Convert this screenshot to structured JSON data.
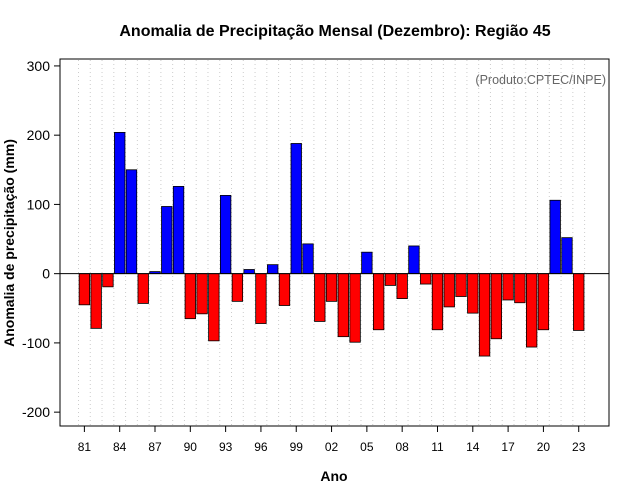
{
  "chart_data": {
    "type": "bar",
    "title": "Anomalia de Precipitação Mensal (Dezembro): Região 45",
    "xlabel": "Ano",
    "ylabel": "Anomalia de precipitação (mm)",
    "credit": "(Produto:CPTEC/INPE)",
    "ylim": [
      -220,
      310
    ],
    "yticks": [
      -200,
      -100,
      0,
      100,
      200,
      300
    ],
    "grid": "vertical dotted",
    "colors": {
      "positive": "#0000ff",
      "negative": "#ff0000",
      "grid": "#cccccc",
      "axis": "#000000",
      "credit": "#666666"
    },
    "categories": [
      "81",
      "82",
      "83",
      "84",
      "85",
      "86",
      "87",
      "88",
      "89",
      "90",
      "91",
      "92",
      "93",
      "94",
      "95",
      "96",
      "97",
      "98",
      "99",
      "00",
      "01",
      "02",
      "03",
      "04",
      "05",
      "06",
      "07",
      "08",
      "09",
      "10",
      "11",
      "12",
      "13",
      "14",
      "15",
      "16",
      "17",
      "18",
      "19",
      "20",
      "21",
      "22",
      "23"
    ],
    "xtick_labels": [
      "81",
      "84",
      "87",
      "90",
      "93",
      "96",
      "99",
      "02",
      "05",
      "08",
      "11",
      "14",
      "17",
      "20",
      "23"
    ],
    "values": [
      -45,
      -79,
      -19,
      204,
      150,
      -43,
      3,
      97,
      126,
      -65,
      -58,
      -97,
      113,
      -40,
      6,
      -72,
      13,
      -46,
      188,
      43,
      -69,
      -40,
      -91,
      -99,
      31,
      -81,
      -17,
      -36,
      40,
      -15,
      -81,
      -48,
      -33,
      -57,
      -119,
      -94,
      -38,
      -42,
      -106,
      -81,
      106,
      52,
      -82
    ]
  }
}
